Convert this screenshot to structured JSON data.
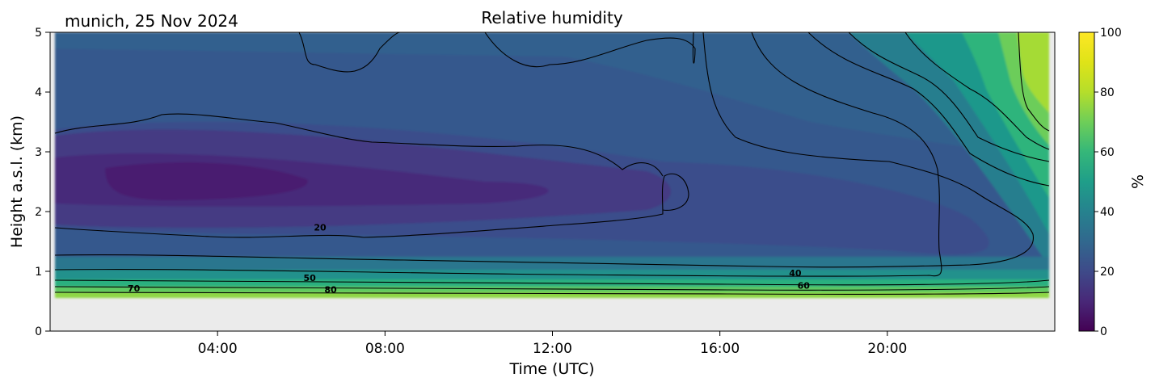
{
  "chart_data": {
    "type": "heatmap",
    "title": "Relative humidity",
    "location_label": "munich, 25 Nov 2024",
    "xlabel": "Time (UTC)",
    "ylabel": "Height a.s.l. (km)",
    "xlim_hours": [
      0,
      24
    ],
    "ylim": [
      0,
      5
    ],
    "x_ticks": [
      {
        "value": 4,
        "label": "04:00"
      },
      {
        "value": 8,
        "label": "08:00"
      },
      {
        "value": 12,
        "label": "12:00"
      },
      {
        "value": 16,
        "label": "16:00"
      },
      {
        "value": 20,
        "label": "20:00"
      }
    ],
    "y_ticks": [
      {
        "value": 0,
        "label": "0"
      },
      {
        "value": 1,
        "label": "1"
      },
      {
        "value": 2,
        "label": "2"
      },
      {
        "value": 3,
        "label": "3"
      },
      {
        "value": 4,
        "label": "4"
      },
      {
        "value": 5,
        "label": "5"
      }
    ],
    "data_bottom_km": 0.55,
    "colorbar": {
      "label": "%",
      "range": [
        0,
        100
      ],
      "colormap": "viridis",
      "ticks": [
        {
          "value": 0,
          "label": "0"
        },
        {
          "value": 20,
          "label": "20"
        },
        {
          "value": 40,
          "label": "40"
        },
        {
          "value": 60,
          "label": "60"
        },
        {
          "value": 80,
          "label": "80"
        },
        {
          "value": 100,
          "label": "100"
        }
      ]
    },
    "contour_labels": [
      {
        "text": "20",
        "x": 6.45,
        "y": 1.68
      },
      {
        "text": "50",
        "x": 6.2,
        "y": 0.84
      },
      {
        "text": "70",
        "x": 2.0,
        "y": 0.66
      },
      {
        "text": "80",
        "x": 6.7,
        "y": 0.64
      },
      {
        "text": "40",
        "x": 17.8,
        "y": 0.92
      },
      {
        "text": "60",
        "x": 18.0,
        "y": 0.71
      }
    ],
    "missing_color": "#ebebeb"
  }
}
